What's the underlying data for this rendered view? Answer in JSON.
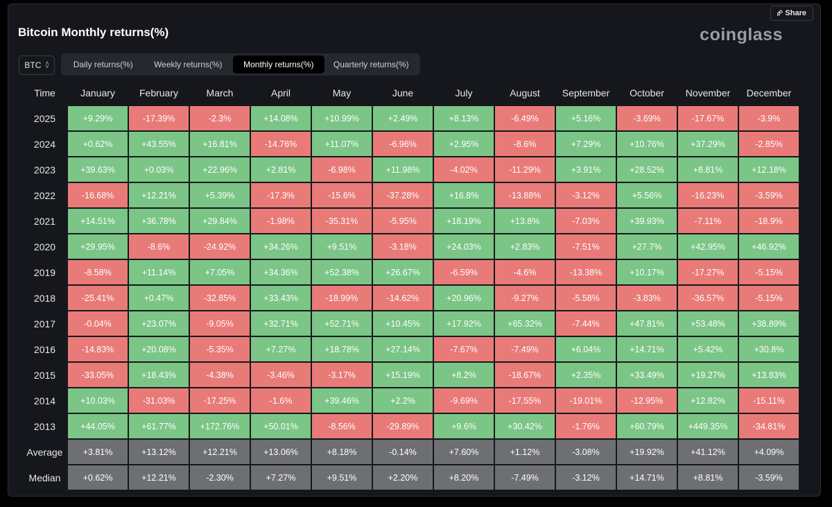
{
  "header": {
    "title": "Bitcoin Monthly returns(%)",
    "logo": "coinglass",
    "share_label": "Share"
  },
  "coin_select": {
    "value": "BTC"
  },
  "tabs": [
    {
      "label": "Daily returns(%)",
      "active": false
    },
    {
      "label": "Weekly returns(%)",
      "active": false
    },
    {
      "label": "Monthly returns(%)",
      "active": true
    },
    {
      "label": "Quarterly returns(%)",
      "active": false
    }
  ],
  "colors": {
    "positive": "#7bc586",
    "negative": "#e87b78",
    "stat": "#6d6f73"
  },
  "table": {
    "time_header": "Time",
    "months": [
      "January",
      "February",
      "March",
      "April",
      "May",
      "June",
      "July",
      "August",
      "September",
      "October",
      "November",
      "December"
    ],
    "rows": [
      {
        "year": "2025",
        "values": [
          "+9.29%",
          "-17.39%",
          "-2.3%",
          "+14.08%",
          "+10.99%",
          "+2.49%",
          "+8.13%",
          "-6.49%",
          "+5.16%",
          "-3.69%",
          "-17.67%",
          "-3.9%"
        ]
      },
      {
        "year": "2024",
        "values": [
          "+0.62%",
          "+43.55%",
          "+16.81%",
          "-14.76%",
          "+11.07%",
          "-6.96%",
          "+2.95%",
          "-8.6%",
          "+7.29%",
          "+10.76%",
          "+37.29%",
          "-2.85%"
        ]
      },
      {
        "year": "2023",
        "values": [
          "+39.63%",
          "+0.03%",
          "+22.96%",
          "+2.81%",
          "-6.98%",
          "+11.98%",
          "-4.02%",
          "-11.29%",
          "+3.91%",
          "+28.52%",
          "+8.81%",
          "+12.18%"
        ]
      },
      {
        "year": "2022",
        "values": [
          "-16.68%",
          "+12.21%",
          "+5.39%",
          "-17.3%",
          "-15.6%",
          "-37.28%",
          "+16.8%",
          "-13.88%",
          "-3.12%",
          "+5.56%",
          "-16.23%",
          "-3.59%"
        ]
      },
      {
        "year": "2021",
        "values": [
          "+14.51%",
          "+36.78%",
          "+29.84%",
          "-1.98%",
          "-35.31%",
          "-5.95%",
          "+18.19%",
          "+13.8%",
          "-7.03%",
          "+39.93%",
          "-7.11%",
          "-18.9%"
        ]
      },
      {
        "year": "2020",
        "values": [
          "+29.95%",
          "-8.6%",
          "-24.92%",
          "+34.26%",
          "+9.51%",
          "-3.18%",
          "+24.03%",
          "+2.83%",
          "-7.51%",
          "+27.7%",
          "+42.95%",
          "+46.92%"
        ]
      },
      {
        "year": "2019",
        "values": [
          "-8.58%",
          "+11.14%",
          "+7.05%",
          "+34.36%",
          "+52.38%",
          "+26.67%",
          "-6.59%",
          "-4.6%",
          "-13.38%",
          "+10.17%",
          "-17.27%",
          "-5.15%"
        ]
      },
      {
        "year": "2018",
        "values": [
          "-25.41%",
          "+0.47%",
          "-32.85%",
          "+33.43%",
          "-18.99%",
          "-14.62%",
          "+20.96%",
          "-9.27%",
          "-5.58%",
          "-3.83%",
          "-36.57%",
          "-5.15%"
        ]
      },
      {
        "year": "2017",
        "values": [
          "-0.04%",
          "+23.07%",
          "-9.05%",
          "+32.71%",
          "+52.71%",
          "+10.45%",
          "+17.92%",
          "+65.32%",
          "-7.44%",
          "+47.81%",
          "+53.48%",
          "+38.89%"
        ]
      },
      {
        "year": "2016",
        "values": [
          "-14.83%",
          "+20.08%",
          "-5.35%",
          "+7.27%",
          "+18.78%",
          "+27.14%",
          "-7.67%",
          "-7.49%",
          "+6.04%",
          "+14.71%",
          "+5.42%",
          "+30.8%"
        ]
      },
      {
        "year": "2015",
        "values": [
          "-33.05%",
          "+18.43%",
          "-4.38%",
          "-3.46%",
          "-3.17%",
          "+15.19%",
          "+8.2%",
          "-18.67%",
          "+2.35%",
          "+33.49%",
          "+19.27%",
          "+13.83%"
        ]
      },
      {
        "year": "2014",
        "values": [
          "+10.03%",
          "-31.03%",
          "-17.25%",
          "-1.6%",
          "+39.46%",
          "+2.2%",
          "-9.69%",
          "-17.55%",
          "-19.01%",
          "-12.95%",
          "+12.82%",
          "-15.11%"
        ]
      },
      {
        "year": "2013",
        "values": [
          "+44.05%",
          "+61.77%",
          "+172.76%",
          "+50.01%",
          "-8.56%",
          "-29.89%",
          "+9.6%",
          "+30.42%",
          "-1.76%",
          "+60.79%",
          "+449.35%",
          "-34.81%"
        ]
      }
    ],
    "stats": [
      {
        "label": "Average",
        "values": [
          "+3.81%",
          "+13.12%",
          "+12.21%",
          "+13.06%",
          "+8.18%",
          "-0.14%",
          "+7.60%",
          "+1.12%",
          "-3.08%",
          "+19.92%",
          "+41.12%",
          "+4.09%"
        ]
      },
      {
        "label": "Median",
        "values": [
          "+0.62%",
          "+12.21%",
          "-2.30%",
          "+7.27%",
          "+9.51%",
          "+2.20%",
          "+8.20%",
          "-7.49%",
          "-3.12%",
          "+14.71%",
          "+8.81%",
          "-3.59%"
        ]
      }
    ]
  }
}
